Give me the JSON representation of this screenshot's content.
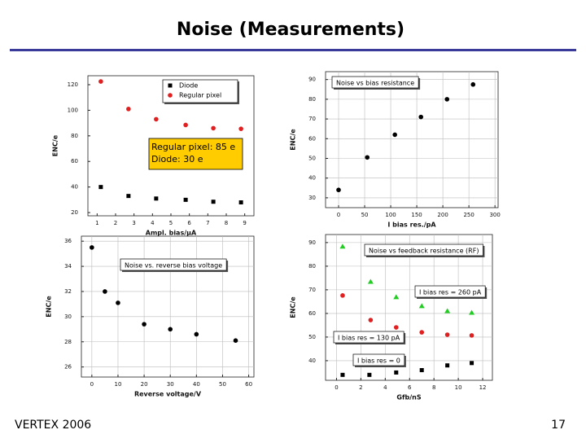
{
  "header": {
    "title": "Noise (Measurements)"
  },
  "footer": {
    "left": "VERTEX 2006",
    "page": "17"
  },
  "chart_data": [
    {
      "type": "scatter",
      "x_label": "Ampl. bias/µA",
      "y_label": "ENC/e",
      "xlim": [
        0.5,
        9.5
      ],
      "ylim": [
        17.5,
        127
      ],
      "xticks": [
        1,
        2,
        3,
        4,
        5,
        6,
        7,
        8,
        9
      ],
      "yticks": [
        20,
        40,
        60,
        80,
        100,
        120
      ],
      "grid": false,
      "annotations": [
        "Regular pixel: 85 e",
        "Diode: 30 e"
      ],
      "series": [
        {
          "name": "Diode",
          "color": "#000000",
          "marker": "square",
          "x": [
            1.2,
            2.7,
            4.2,
            5.8,
            7.3,
            8.8
          ],
          "values": [
            40,
            33,
            31,
            30,
            28.5,
            28
          ]
        },
        {
          "name": "Regular pixel",
          "color": "#e02020",
          "marker": "circle",
          "x": [
            1.2,
            2.7,
            4.2,
            5.8,
            7.3,
            8.8
          ],
          "values": [
            122.5,
            101,
            93,
            88.5,
            86,
            85.5
          ]
        }
      ]
    },
    {
      "type": "scatter",
      "title": "Noise vs bias resistance",
      "x_label": "I bias res./pA",
      "y_label": "ENC/e",
      "xlim": [
        -25,
        306
      ],
      "ylim": [
        25,
        94
      ],
      "xticks": [
        0,
        50,
        100,
        150,
        200,
        250,
        300
      ],
      "yticks": [
        30,
        40,
        50,
        60,
        70,
        80,
        90
      ],
      "grid": true,
      "series": [
        {
          "name": null,
          "color": "#000000",
          "marker": "circle",
          "x": [
            0,
            55,
            108,
            158,
            208,
            258
          ],
          "values": [
            34,
            50.5,
            62,
            71,
            80,
            87.5
          ]
        }
      ]
    },
    {
      "type": "scatter",
      "title": "Noise vs. reverse bias voltage",
      "x_label": "Reverse voltage/V",
      "y_label": "ENC/e",
      "xlim": [
        -4,
        62
      ],
      "ylim": [
        25.2,
        36.4
      ],
      "xticks": [
        0,
        10,
        20,
        30,
        40,
        50,
        60
      ],
      "yticks": [
        26,
        28,
        30,
        32,
        34,
        36
      ],
      "grid": true,
      "series": [
        {
          "name": null,
          "color": "#000000",
          "marker": "circle",
          "x": [
            0,
            5,
            10,
            20,
            30,
            40,
            55
          ],
          "values": [
            35.5,
            32,
            31.1,
            29.4,
            29,
            28.6,
            28.1
          ]
        }
      ]
    },
    {
      "type": "scatter",
      "title": "Noise vs feedback resistance (RF)",
      "x_label": "Gfb/nS",
      "y_label": "ENC/e",
      "xlim": [
        -0.9,
        12.8
      ],
      "ylim": [
        31.7,
        93.4
      ],
      "xticks": [
        0,
        2,
        4,
        6,
        8,
        10,
        12
      ],
      "yticks": [
        40,
        50,
        60,
        70,
        80,
        90
      ],
      "grid": true,
      "series": [
        {
          "name": "I bias res = 260 pA",
          "color": "#22cc22",
          "marker": "triangle",
          "x": [
            0.5,
            2.8,
            4.9,
            7.0,
            9.1,
            11.1
          ],
          "values": [
            88.3,
            73.4,
            66.9,
            63.1,
            61,
            60.3
          ]
        },
        {
          "name": "I bias res = 130 pA",
          "color": "#e02020",
          "marker": "circle",
          "x": [
            0.5,
            2.8,
            4.9,
            7.0,
            9.1,
            11.1
          ],
          "values": [
            67.6,
            57.2,
            54.1,
            52,
            51,
            50.7
          ]
        },
        {
          "name": "I bias res = 0",
          "color": "#000000",
          "marker": "square",
          "x": [
            0.5,
            2.7,
            4.9,
            7.0,
            9.1,
            11.1
          ],
          "values": [
            34,
            34,
            35,
            36,
            38,
            39
          ]
        }
      ]
    }
  ]
}
